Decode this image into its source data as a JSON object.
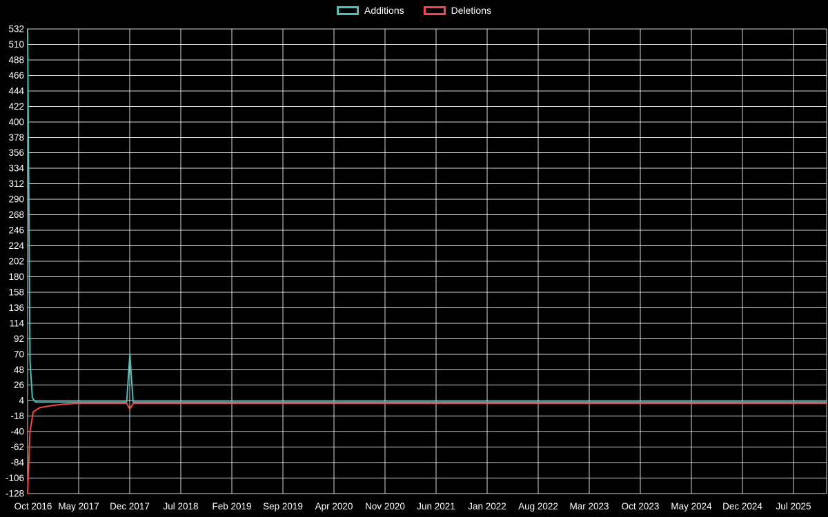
{
  "legend": [
    {
      "label": "Additions",
      "color": "#4BC0C0"
    },
    {
      "label": "Deletions",
      "color": "#F7464A"
    }
  ],
  "colors": {
    "background": "#000000",
    "grid": "#ffffff",
    "tick_text": "#ffffff",
    "additions": "#4BC0C0",
    "deletions": "#F7464A"
  },
  "chart_data": {
    "type": "line",
    "title": "",
    "xlabel": "",
    "ylabel": "",
    "grid": true,
    "legend_position": "top",
    "ylim": [
      -128,
      532
    ],
    "y_tick_step": 22,
    "y_ticks": [
      532,
      510,
      488,
      466,
      444,
      422,
      400,
      378,
      356,
      334,
      312,
      290,
      268,
      246,
      224,
      202,
      180,
      158,
      136,
      114,
      92,
      70,
      48,
      26,
      4,
      -18,
      -40,
      -62,
      -84,
      -106,
      -128
    ],
    "x_ticks": [
      "Oct 2016",
      "May 2017",
      "Dec 2017",
      "Jul 2018",
      "Feb 2019",
      "Sep 2019",
      "Apr 2020",
      "Nov 2020",
      "Jun 2021",
      "Jan 2022",
      "Aug 2022",
      "Mar 2023",
      "Oct 2023",
      "May 2024",
      "Dec 2024",
      "Jul 2025"
    ],
    "series": [
      {
        "name": "Additions",
        "color": "#4BC0C0",
        "points": [
          [
            0.0,
            532
          ],
          [
            0.003,
            60
          ],
          [
            0.006,
            8
          ],
          [
            0.01,
            2
          ],
          [
            0.124,
            2
          ],
          [
            0.128,
            70
          ],
          [
            0.132,
            2
          ],
          [
            0.5,
            2
          ],
          [
            1.0,
            2
          ]
        ]
      },
      {
        "name": "Deletions",
        "color": "#F7464A",
        "points": [
          [
            0.0,
            -128
          ],
          [
            0.003,
            -40
          ],
          [
            0.007,
            -12
          ],
          [
            0.015,
            -6
          ],
          [
            0.03,
            -3
          ],
          [
            0.045,
            -1
          ],
          [
            0.06,
            0
          ],
          [
            0.124,
            0
          ],
          [
            0.128,
            -8
          ],
          [
            0.132,
            0
          ],
          [
            0.5,
            0
          ],
          [
            1.0,
            0
          ]
        ]
      }
    ]
  }
}
